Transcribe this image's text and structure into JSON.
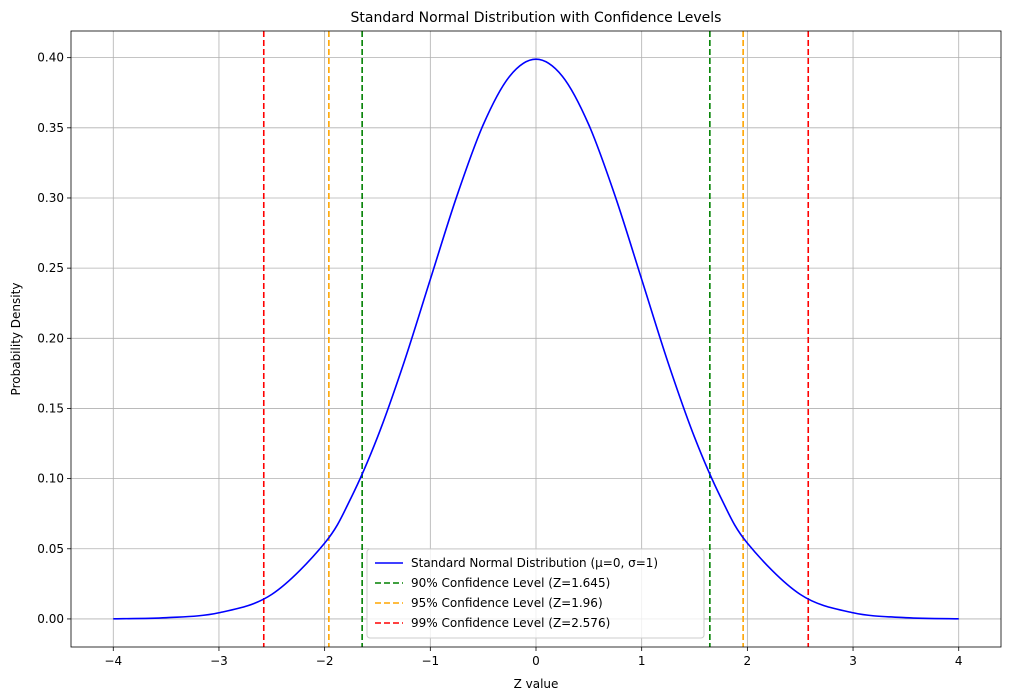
{
  "chart_data": {
    "type": "line",
    "title": "Standard Normal Distribution with Confidence Levels",
    "xlabel": "Z value",
    "ylabel": "Probability Density",
    "xlim": [
      -4.4,
      4.4
    ],
    "ylim": [
      -0.02,
      0.419
    ],
    "grid": true,
    "legend_position": "lower center",
    "x_ticks": [
      -4,
      -3,
      -2,
      -1,
      0,
      1,
      2,
      3,
      4
    ],
    "x_tick_labels": [
      "−4",
      "−3",
      "−2",
      "−1",
      "0",
      "1",
      "2",
      "3",
      "4"
    ],
    "y_ticks": [
      0.0,
      0.05,
      0.1,
      0.15,
      0.2,
      0.25,
      0.3,
      0.35,
      0.4
    ],
    "y_tick_labels": [
      "0.00",
      "0.05",
      "0.10",
      "0.15",
      "0.20",
      "0.25",
      "0.30",
      "0.35",
      "0.40"
    ],
    "series": [
      {
        "name": "Standard Normal Distribution (μ=0, σ=1)",
        "color": "#0000ff",
        "style": "solid",
        "x": [
          -4.0,
          -3.5,
          -3.0,
          -2.5,
          -2.0,
          -1.75,
          -1.5,
          -1.25,
          -1.0,
          -0.75,
          -0.5,
          -0.25,
          0.0,
          0.25,
          0.5,
          0.75,
          1.0,
          1.25,
          1.5,
          1.75,
          2.0,
          2.5,
          3.0,
          3.5,
          4.0
        ],
        "y": [
          0.0001,
          0.0009,
          0.0044,
          0.0175,
          0.054,
          0.0863,
          0.1295,
          0.1826,
          0.242,
          0.3011,
          0.3521,
          0.3867,
          0.3989,
          0.3867,
          0.3521,
          0.3011,
          0.242,
          0.1826,
          0.1295,
          0.0863,
          0.054,
          0.0175,
          0.0044,
          0.0009,
          0.0001
        ]
      }
    ],
    "vlines": [
      {
        "name": "90% Confidence Level (Z=1.645)",
        "color": "#008000",
        "style": "dashed",
        "x": [
          -1.645,
          1.645
        ]
      },
      {
        "name": "95% Confidence Level (Z=1.96)",
        "color": "#ffa500",
        "style": "dashed",
        "x": [
          -1.96,
          1.96
        ]
      },
      {
        "name": "99% Confidence Level (Z=2.576)",
        "color": "#ff0000",
        "style": "dashed",
        "x": [
          -2.576,
          2.576
        ]
      }
    ]
  }
}
